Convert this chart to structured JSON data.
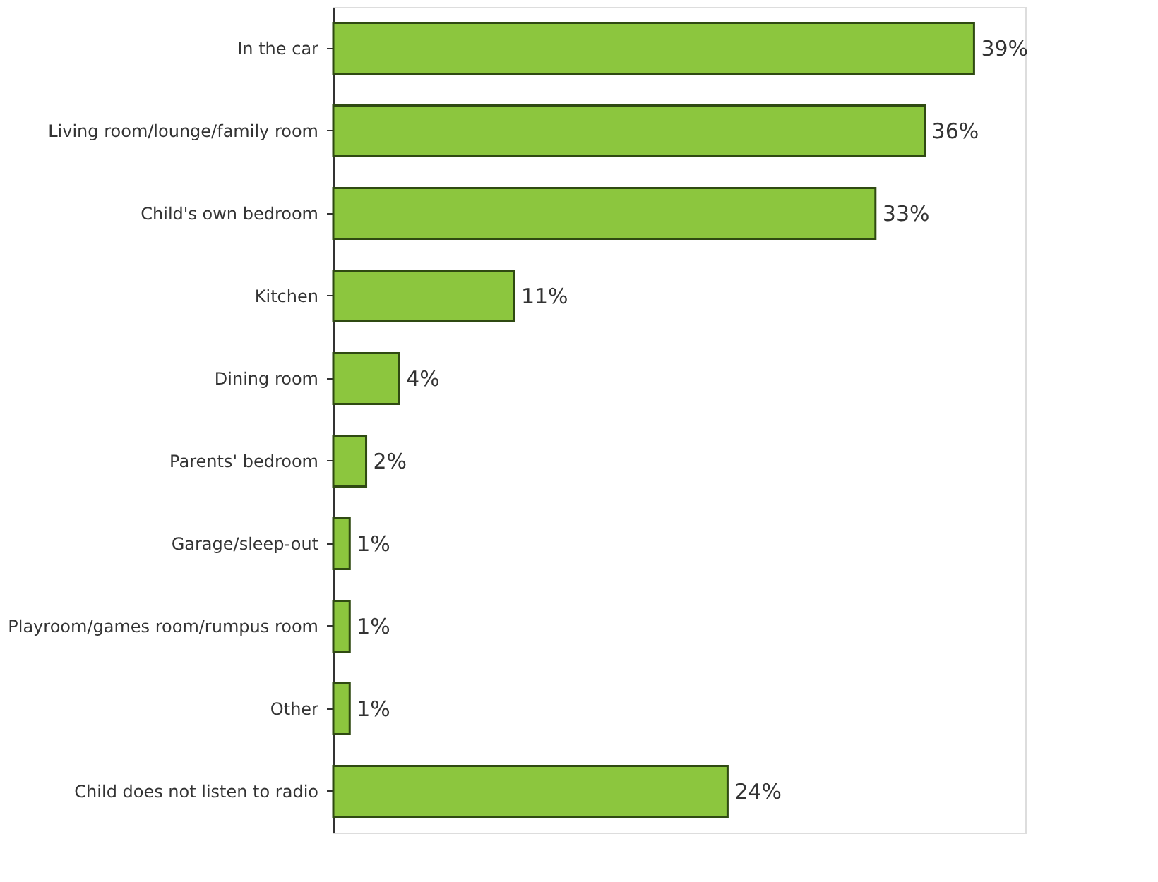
{
  "chart_data": {
    "type": "bar",
    "orientation": "horizontal",
    "categories": [
      "In the car",
      "Living room/lounge/family room",
      "Child's own bedroom",
      "Kitchen",
      "Dining room",
      "Parents' bedroom",
      "Garage/sleep-out",
      "Playroom/games room/rumpus room",
      "Other",
      "Child does not listen to radio"
    ],
    "values": [
      39,
      36,
      33,
      11,
      4,
      2,
      1,
      1,
      1,
      24
    ],
    "value_labels": [
      "39%",
      "36%",
      "33%",
      "11%",
      "4%",
      "2%",
      "1%",
      "1%",
      "1%",
      "24%"
    ],
    "color": "#8cc63e",
    "grid": false
  }
}
